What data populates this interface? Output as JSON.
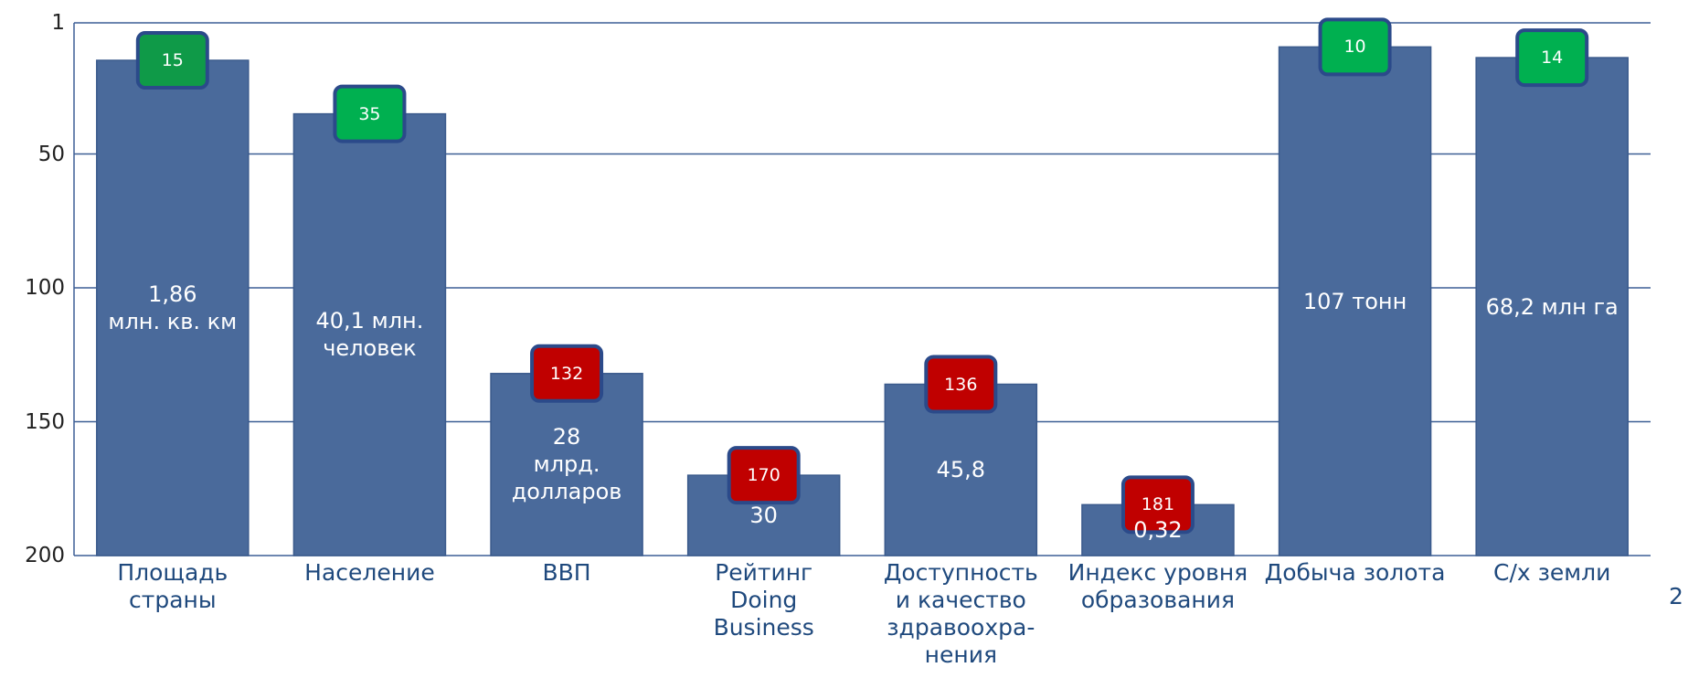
{
  "chart_data": {
    "type": "bar",
    "categories": [
      "Площадь\nстраны",
      "Население",
      "ВВП",
      "Рейтинг\nDoing\nBusiness",
      "Доступность\nи качество\nздравоохра-\nнения",
      "Индекс уровня\nобразования",
      "Добыча золота",
      "С/х земли"
    ],
    "values": [
      15,
      35,
      132,
      170,
      136,
      181,
      10,
      14
    ],
    "bar_labels": [
      "1,86\nмлн. кв. км",
      "40,1 млн.\nчеловек",
      "28\nмлрд.\nдолларов",
      "30",
      "45,8",
      "0,32",
      "107 тонн",
      "68,2 млн га"
    ],
    "color": "#4a6a9b",
    "badge_colors": [
      "#0f9a48",
      "#00b050",
      "#c00000",
      "#c00000",
      "#c00000",
      "#c00000",
      "#00b050",
      "#00b050"
    ],
    "ylim": [
      1,
      200
    ],
    "y_inverted": true,
    "yticks": [
      1,
      50,
      100,
      150,
      200
    ],
    "grid": true,
    "page_number": "2"
  }
}
